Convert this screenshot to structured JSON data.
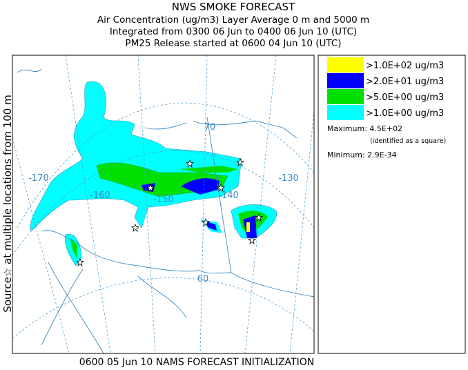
{
  "header": {
    "lines": [
      "NWS SMOKE FORECAST",
      "Air Concentration (ug/m3) Layer Average    0 m and  5000 m",
      "Integrated from 0300 06 Jun to 0400 06 Jun 10 (UTC)",
      "PM25 Release started at 0600 04 Jun 10 (UTC)"
    ]
  },
  "side_label": "Source☆ at multiple locations   from   100 m",
  "legend": {
    "entries": [
      {
        "label": ">1.0E+02 ug/m3",
        "color": "#ffff00"
      },
      {
        "label": ">2.0E+01 ug/m3",
        "color": "#0000ff"
      },
      {
        "label": ">5.0E+00 ug/m3",
        "color": "#00e000"
      },
      {
        "label": ">1.0E+00 ug/m3",
        "color": "#00ffff"
      }
    ],
    "maximum": "Maximum: 4.5E+02",
    "maximum_note": "(identified as a square)",
    "minimum": "Minimum: 2.9E-34"
  },
  "map": {
    "labels": [
      "-170",
      "-160",
      "-150",
      "-140",
      "-130",
      "70",
      "60"
    ]
  },
  "footer": "0600 05 Jun 10 NAMS FORECAST INITIALIZATION"
}
